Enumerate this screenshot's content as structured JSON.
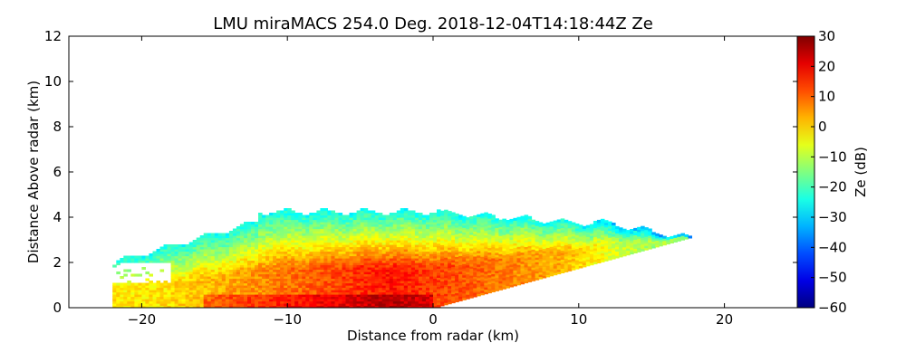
{
  "chart_data": {
    "type": "heatmap",
    "title": "LMU miraMACS 254.0 Deg. 2018-12-04T14:18:44Z  Ze",
    "xlabel": "Distance from radar (km)",
    "ylabel": "Distance Above radar  (km)",
    "xlim": [
      -25,
      25
    ],
    "ylim": [
      0,
      12
    ],
    "x_ticks": [
      -20,
      -10,
      0,
      10,
      20
    ],
    "x_tick_labels": [
      "−20",
      "−10",
      "0",
      "10",
      "20"
    ],
    "y_ticks": [
      0,
      2,
      4,
      6,
      8,
      10,
      12
    ],
    "y_tick_labels": [
      "0",
      "2",
      "4",
      "6",
      "8",
      "10",
      "12"
    ],
    "colorbar": {
      "label": "Ze (dB)",
      "min": -60,
      "max": 30,
      "colormap": "jet",
      "ticks": [
        30,
        20,
        10,
        0,
        -10,
        -20,
        -30,
        -40,
        -50,
        -60
      ],
      "tick_labels": [
        "30",
        "20",
        "10",
        "0",
        "−10",
        "−20",
        "−30",
        "−40",
        "−50",
        "−60"
      ]
    },
    "scan": {
      "elevation_deg": 10,
      "range_min_km": -22,
      "range_max_km": 18.3,
      "cloud_top_km_left": 3.9,
      "cloud_top_km_center": 4.2,
      "cloud_top_km_right": 3.8,
      "core_reflectivity_dB": 17,
      "edge_reflectivity_dB": -25
    }
  }
}
